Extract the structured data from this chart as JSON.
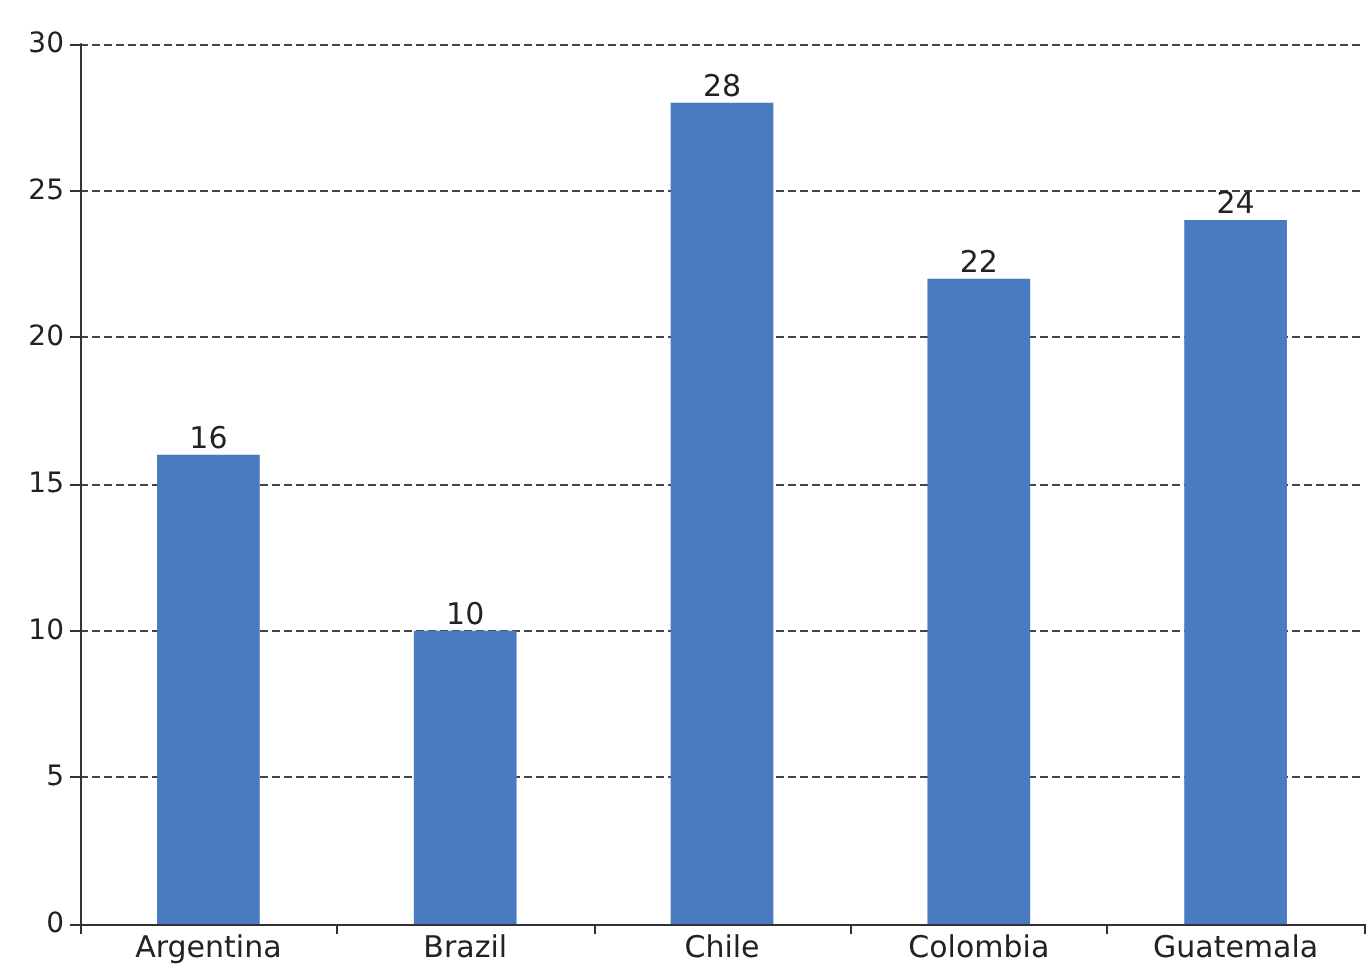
{
  "chart_data": {
    "type": "bar",
    "categories": [
      "Argentina",
      "Brazil",
      "Chile",
      "Colombia",
      "Guatemala"
    ],
    "values": [
      16,
      10,
      28,
      22,
      24
    ],
    "color": "#4a7bc0",
    "ylim": [
      0,
      30
    ],
    "yticks": [
      0,
      5,
      10,
      15,
      20,
      25,
      30
    ],
    "grid": "y",
    "data_labels": true
  }
}
